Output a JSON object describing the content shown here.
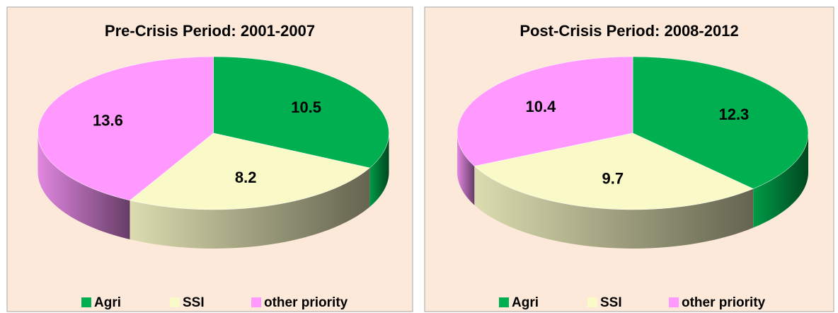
{
  "chart_data": [
    {
      "type": "pie",
      "title": "Pre-Crisis Period: 2001-2007",
      "categories": [
        "Agri",
        "SSI",
        "other priority"
      ],
      "values": [
        10.5,
        8.2,
        13.6
      ],
      "colors": [
        "#00b050",
        "#fafac8",
        "#ff99ff"
      ]
    },
    {
      "type": "pie",
      "title": "Post-Crisis Period: 2008-2012",
      "categories": [
        "Agri",
        "SSI",
        "other priority"
      ],
      "values": [
        12.3,
        9.7,
        10.4
      ],
      "colors": [
        "#00b050",
        "#fafac8",
        "#ff99ff"
      ]
    }
  ]
}
